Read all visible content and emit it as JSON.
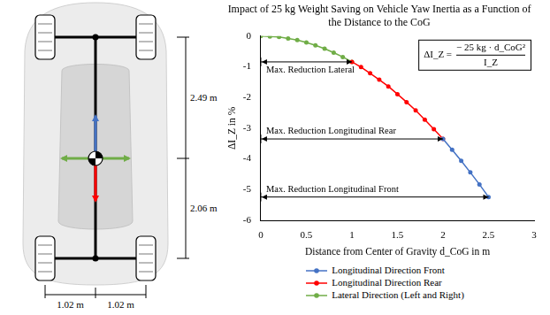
{
  "chart_data": {
    "type": "line",
    "title": "Impact of 25 kg Weight Saving on Vehicle Yaw Inertia as a Function of the Distance to the CoG",
    "x_label": "Distance from Center of Gravity d_CoG in m",
    "y_label": "ΔI_Z in %",
    "xlim": [
      0,
      3
    ],
    "xticks": [
      0,
      0.5,
      1,
      1.5,
      2,
      2.5,
      3
    ],
    "ylim": [
      -6,
      0
    ],
    "yticks": [
      -6,
      -5,
      -4,
      -3,
      -2,
      -1,
      0
    ],
    "grid": false,
    "legend": "bottom",
    "marker": "circle",
    "line_style": "solid",
    "series": [
      {
        "name": "Longitudinal Direction Front",
        "color": "#4472c4",
        "x": [
          2.0,
          2.1,
          2.2,
          2.3,
          2.4,
          2.5
        ],
        "values": [
          -3.35,
          -3.7,
          -4.06,
          -4.44,
          -4.83,
          -5.24
        ]
      },
      {
        "name": "Longitudinal Direction Rear",
        "color": "#ff0000",
        "x": [
          1.0,
          1.1,
          1.2,
          1.3,
          1.4,
          1.5,
          1.6,
          1.7,
          1.8,
          1.9,
          2.0
        ],
        "values": [
          -0.84,
          -1.01,
          -1.21,
          -1.42,
          -1.64,
          -1.89,
          -2.15,
          -2.42,
          -2.72,
          -3.03,
          -3.35
        ]
      },
      {
        "name": "Lateral Direction (Left and Right)",
        "color": "#70ad47",
        "x": [
          0,
          0.1,
          0.2,
          0.3,
          0.4,
          0.5,
          0.6,
          0.7,
          0.8,
          0.9,
          1.0
        ],
        "values": [
          0,
          -0.01,
          -0.03,
          -0.08,
          -0.13,
          -0.21,
          -0.3,
          -0.41,
          -0.54,
          -0.68,
          -0.84
        ]
      }
    ],
    "annotations": [
      {
        "text": "Max. Reduction Lateral",
        "x": [
          0,
          1.0
        ],
        "y": -0.84
      },
      {
        "text": "Max. Reduction Longitudinal Rear",
        "x": [
          0,
          2.0
        ],
        "y": -3.35
      },
      {
        "text": "Max. Reduction Longitudinal Front",
        "x": [
          0,
          2.5
        ],
        "y": -5.24
      }
    ],
    "formula": {
      "lhs": "ΔI_Z =",
      "numerator": "− 25 kg · d_CoG²",
      "denominator": "I_Z"
    }
  },
  "car_diagram": {
    "front_axle_to_cog": "2.49 m",
    "cog_to_rear_axle": "2.06 m",
    "left_half_track": "1.02 m",
    "right_half_track": "1.02 m"
  }
}
